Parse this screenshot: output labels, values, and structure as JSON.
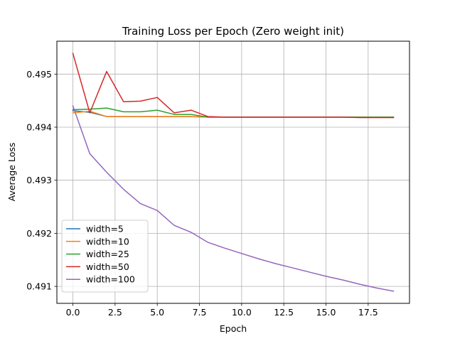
{
  "chart_data": {
    "type": "line",
    "title": "Training Loss per Epoch (Zero weight init)",
    "xlabel": "Epoch",
    "ylabel": "Average Loss",
    "xlim": [
      -0.95,
      19.95
    ],
    "ylim": [
      0.49068,
      0.49562
    ],
    "xticks": [
      0,
      2.5,
      5,
      7.5,
      10,
      12.5,
      15,
      17.5
    ],
    "xtick_labels": [
      "0.0",
      "2.5",
      "5.0",
      "7.5",
      "10.0",
      "12.5",
      "15.0",
      "17.5"
    ],
    "yticks": [
      0.491,
      0.492,
      0.493,
      0.494,
      0.495
    ],
    "ytick_labels": [
      "0.491",
      "0.492",
      "0.493",
      "0.494",
      "0.495"
    ],
    "grid": true,
    "legend_position": "lower-left",
    "x": [
      0,
      1,
      2,
      3,
      4,
      5,
      6,
      7,
      8,
      9,
      10,
      11,
      12,
      13,
      14,
      15,
      16,
      17,
      18,
      19
    ],
    "series": [
      {
        "name": "width=5",
        "color": "#1f77b4",
        "values": [
          0.49431,
          0.49428,
          0.4942,
          0.4942,
          0.4942,
          0.4942,
          0.4942,
          0.4942,
          0.49419,
          0.49419,
          0.49419,
          0.49419,
          0.49419,
          0.49419,
          0.49419,
          0.49419,
          0.49419,
          0.49419,
          0.49419,
          0.49419
        ]
      },
      {
        "name": "width=10",
        "color": "#ff7f0e",
        "values": [
          0.49427,
          0.4943,
          0.4942,
          0.4942,
          0.4942,
          0.4942,
          0.4942,
          0.4942,
          0.49419,
          0.49419,
          0.49419,
          0.49419,
          0.49419,
          0.49419,
          0.49419,
          0.49419,
          0.49419,
          0.49419,
          0.49419,
          0.49419
        ]
      },
      {
        "name": "width=25",
        "color": "#2ca02c",
        "values": [
          0.49433,
          0.49434,
          0.49436,
          0.49429,
          0.49429,
          0.49432,
          0.49424,
          0.49424,
          0.49419,
          0.49419,
          0.49419,
          0.49419,
          0.49419,
          0.49419,
          0.49419,
          0.49419,
          0.49419,
          0.49419,
          0.49419,
          0.49419
        ]
      },
      {
        "name": "width=50",
        "color": "#d62728",
        "values": [
          0.49539,
          0.49427,
          0.49505,
          0.49448,
          0.49449,
          0.49456,
          0.49427,
          0.49432,
          0.4942,
          0.49419,
          0.49419,
          0.49419,
          0.49419,
          0.49419,
          0.49419,
          0.49419,
          0.49419,
          0.49418,
          0.49418,
          0.49418
        ]
      },
      {
        "name": "width=100",
        "color": "#9467bd",
        "values": [
          0.4944,
          0.4935,
          0.49315,
          0.49283,
          0.49256,
          0.49243,
          0.49215,
          0.49202,
          0.49183,
          0.49172,
          0.49162,
          0.49152,
          0.49143,
          0.49135,
          0.49127,
          0.49119,
          0.49112,
          0.49104,
          0.49097,
          0.49091
        ]
      }
    ]
  }
}
